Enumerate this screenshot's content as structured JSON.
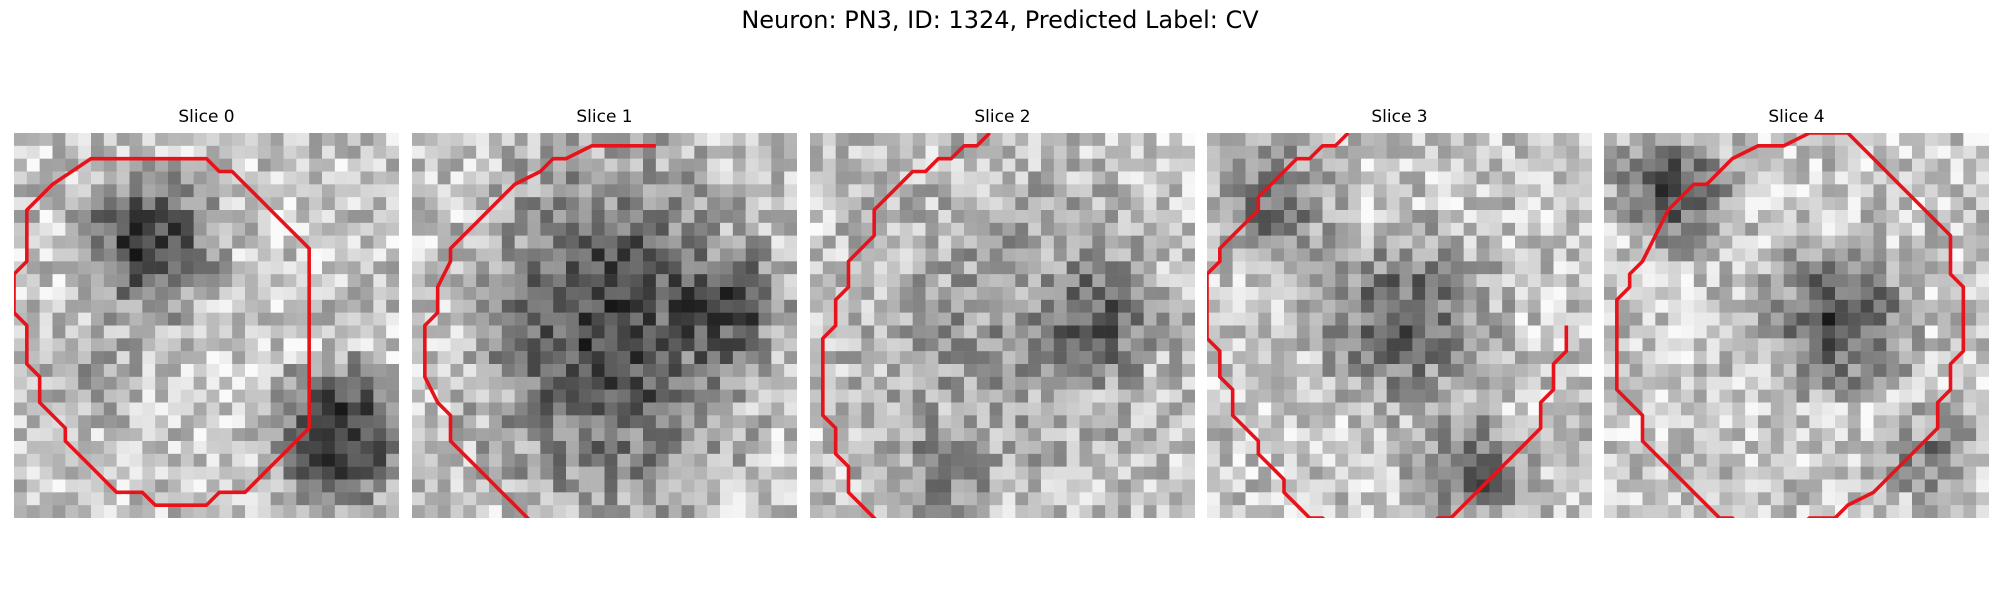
{
  "figure": {
    "title": "Neuron: PN3, ID: 1324, Predicted Label: CV"
  },
  "colors": {
    "contour": "#e8121b"
  },
  "panels": [
    {
      "title": "Slice 0",
      "seed": 11,
      "contour": [
        [
          10,
          2
        ],
        [
          6,
          2
        ],
        [
          3,
          4
        ],
        [
          1,
          6
        ],
        [
          1,
          10
        ],
        [
          0,
          11
        ],
        [
          0,
          14
        ],
        [
          1,
          15
        ],
        [
          1,
          18
        ],
        [
          2,
          19
        ],
        [
          2,
          21
        ],
        [
          4,
          23
        ],
        [
          4,
          24
        ],
        [
          6,
          26
        ],
        [
          7,
          27
        ],
        [
          8,
          28
        ],
        [
          10,
          28
        ],
        [
          11,
          29
        ],
        [
          15,
          29
        ],
        [
          16,
          28
        ],
        [
          18,
          28
        ],
        [
          20,
          26
        ],
        [
          21,
          25
        ],
        [
          22,
          24
        ],
        [
          23,
          23
        ],
        [
          23,
          20
        ],
        [
          23,
          17
        ],
        [
          23,
          12
        ],
        [
          23,
          9
        ],
        [
          22,
          8
        ],
        [
          21,
          7
        ],
        [
          20,
          6
        ],
        [
          19,
          5
        ],
        [
          18,
          4
        ],
        [
          17,
          3
        ],
        [
          16,
          3
        ],
        [
          15,
          2
        ],
        [
          13,
          2
        ],
        [
          10,
          2
        ]
      ]
    },
    {
      "seed": 23,
      "title": "Slice 1",
      "contour": [
        [
          19,
          1
        ],
        [
          14,
          1
        ],
        [
          12,
          2
        ],
        [
          11,
          2
        ],
        [
          10,
          3
        ],
        [
          8,
          4
        ],
        [
          7,
          5
        ],
        [
          6,
          6
        ],
        [
          5,
          7
        ],
        [
          4,
          8
        ],
        [
          3,
          9
        ],
        [
          3,
          10
        ],
        [
          2,
          12
        ],
        [
          2,
          14
        ],
        [
          1,
          15
        ],
        [
          1,
          19
        ],
        [
          2,
          21
        ],
        [
          3,
          22
        ],
        [
          3,
          24
        ],
        [
          4,
          25
        ],
        [
          5,
          26
        ],
        [
          6,
          27
        ],
        [
          7,
          28
        ],
        [
          8,
          29
        ],
        [
          9,
          30
        ],
        [
          10,
          31
        ],
        [
          11,
          32
        ],
        [
          12,
          33
        ],
        [
          13,
          34
        ]
      ]
    },
    {
      "seed": 37,
      "title": "Slice 2",
      "contour": [
        [
          7,
          32
        ],
        [
          6,
          31
        ],
        [
          5,
          30
        ],
        [
          4,
          29
        ],
        [
          3,
          28
        ],
        [
          3,
          26
        ],
        [
          2,
          25
        ],
        [
          2,
          23
        ],
        [
          1,
          22
        ],
        [
          1,
          16
        ],
        [
          2,
          15
        ],
        [
          2,
          13
        ],
        [
          3,
          12
        ],
        [
          3,
          10
        ],
        [
          4,
          9
        ],
        [
          5,
          8
        ],
        [
          5,
          6
        ],
        [
          6,
          5
        ],
        [
          7,
          4
        ],
        [
          8,
          3
        ],
        [
          9,
          3
        ],
        [
          10,
          2
        ],
        [
          11,
          2
        ],
        [
          12,
          1
        ],
        [
          13,
          1
        ],
        [
          14,
          0
        ]
      ]
    },
    {
      "seed": 53,
      "title": "Slice 3",
      "contour": [
        [
          11,
          0
        ],
        [
          10,
          1
        ],
        [
          9,
          1
        ],
        [
          8,
          2
        ],
        [
          7,
          2
        ],
        [
          5,
          4
        ],
        [
          4,
          5
        ],
        [
          4,
          6
        ],
        [
          3,
          7
        ],
        [
          2,
          8
        ],
        [
          1,
          9
        ],
        [
          1,
          10
        ],
        [
          0,
          11
        ],
        [
          0,
          16
        ],
        [
          1,
          17
        ],
        [
          1,
          19
        ],
        [
          2,
          20
        ],
        [
          2,
          22
        ],
        [
          3,
          23
        ],
        [
          4,
          24
        ],
        [
          4,
          25
        ],
        [
          5,
          26
        ],
        [
          6,
          27
        ],
        [
          6,
          28
        ],
        [
          7,
          29
        ],
        [
          8,
          30
        ],
        [
          9,
          30
        ],
        [
          10,
          31
        ],
        [
          11,
          31
        ],
        [
          12,
          32
        ],
        [
          16,
          32
        ],
        [
          17,
          31
        ],
        [
          18,
          30
        ],
        [
          19,
          30
        ],
        [
          20,
          29
        ],
        [
          21,
          28
        ],
        [
          22,
          27
        ],
        [
          23,
          26
        ],
        [
          24,
          25
        ],
        [
          25,
          24
        ],
        [
          26,
          23
        ],
        [
          26,
          21
        ],
        [
          27,
          20
        ],
        [
          27,
          18
        ],
        [
          28,
          17
        ],
        [
          28,
          15
        ]
      ]
    },
    {
      "seed": 71,
      "title": "Slice 4",
      "contour": [
        [
          16,
          0
        ],
        [
          14,
          1
        ],
        [
          12,
          1
        ],
        [
          10,
          2
        ],
        [
          9,
          3
        ],
        [
          8,
          4
        ],
        [
          7,
          4
        ],
        [
          6,
          5
        ],
        [
          5,
          6
        ],
        [
          4,
          8
        ],
        [
          3,
          10
        ],
        [
          2,
          11
        ],
        [
          2,
          12
        ],
        [
          1,
          13
        ],
        [
          1,
          16
        ],
        [
          1,
          20
        ],
        [
          2,
          21
        ],
        [
          3,
          22
        ],
        [
          3,
          24
        ],
        [
          4,
          25
        ],
        [
          5,
          26
        ],
        [
          6,
          27
        ],
        [
          7,
          28
        ],
        [
          8,
          29
        ],
        [
          9,
          30
        ],
        [
          10,
          30
        ],
        [
          11,
          31
        ],
        [
          15,
          31
        ],
        [
          16,
          30
        ],
        [
          18,
          30
        ],
        [
          19,
          29
        ],
        [
          21,
          28
        ],
        [
          22,
          27
        ],
        [
          23,
          26
        ],
        [
          24,
          25
        ],
        [
          25,
          24
        ],
        [
          26,
          23
        ],
        [
          26,
          21
        ],
        [
          27,
          20
        ],
        [
          27,
          18
        ],
        [
          28,
          17
        ],
        [
          28,
          12
        ],
        [
          27,
          11
        ],
        [
          27,
          8
        ],
        [
          26,
          7
        ],
        [
          25,
          6
        ],
        [
          24,
          5
        ],
        [
          23,
          4
        ],
        [
          22,
          3
        ],
        [
          21,
          2
        ],
        [
          20,
          1
        ],
        [
          19,
          0
        ],
        [
          16,
          0
        ]
      ]
    }
  ]
}
